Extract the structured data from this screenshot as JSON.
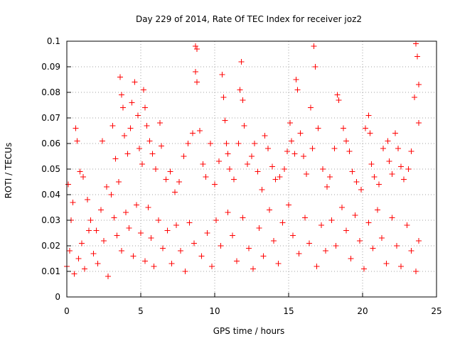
{
  "chart_data": {
    "type": "scatter",
    "title": "Day 229 of 2014, Rate Of TEC Index for receiver joz2",
    "xlabel": "GPS time / hours",
    "ylabel": "ROTI / TECUs",
    "xlim": [
      0,
      25
    ],
    "ylim": [
      0,
      0.1
    ],
    "xticks": [
      0,
      5,
      10,
      15,
      20,
      25
    ],
    "xtick_labels": [
      "0",
      "5",
      "10",
      "15",
      "20",
      "25"
    ],
    "yticks": [
      0,
      0.01,
      0.02,
      0.03,
      0.04,
      0.05,
      0.06,
      0.07,
      0.08,
      0.09,
      0.1
    ],
    "ytick_labels": [
      "0",
      "0.01",
      "0.02",
      "0.03",
      "0.04",
      "0.05",
      "0.06",
      "0.07",
      "0.08",
      "0.09",
      "0.1"
    ],
    "grid": true,
    "marker": "+",
    "series_color": "#ff0000",
    "series": [
      {
        "name": "joz2",
        "points": [
          [
            0.1,
            0.044
          ],
          [
            0.3,
            0.03
          ],
          [
            0.4,
            0.037
          ],
          [
            0.6,
            0.066
          ],
          [
            0.7,
            0.061
          ],
          [
            0.9,
            0.049
          ],
          [
            1.1,
            0.047
          ],
          [
            1.4,
            0.038
          ],
          [
            1.6,
            0.03
          ],
          [
            2.0,
            0.026
          ],
          [
            2.3,
            0.034
          ],
          [
            2.4,
            0.061
          ],
          [
            2.7,
            0.043
          ],
          [
            3.0,
            0.04
          ],
          [
            3.1,
            0.067
          ],
          [
            3.3,
            0.054
          ],
          [
            3.5,
            0.045
          ],
          [
            3.6,
            0.086
          ],
          [
            3.7,
            0.079
          ],
          [
            3.8,
            0.074
          ],
          [
            3.9,
            0.063
          ],
          [
            4.1,
            0.056
          ],
          [
            4.3,
            0.066
          ],
          [
            4.4,
            0.076
          ],
          [
            4.6,
            0.084
          ],
          [
            4.8,
            0.071
          ],
          [
            4.9,
            0.058
          ],
          [
            5.1,
            0.052
          ],
          [
            5.2,
            0.081
          ],
          [
            5.3,
            0.074
          ],
          [
            5.4,
            0.067
          ],
          [
            5.6,
            0.061
          ],
          [
            5.8,
            0.056
          ],
          [
            6.0,
            0.05
          ],
          [
            6.3,
            0.068
          ],
          [
            6.4,
            0.059
          ],
          [
            6.7,
            0.046
          ],
          [
            7.0,
            0.049
          ],
          [
            7.3,
            0.041
          ],
          [
            7.6,
            0.045
          ],
          [
            7.9,
            0.055
          ],
          [
            8.2,
            0.06
          ],
          [
            8.5,
            0.064
          ],
          [
            8.7,
            0.098
          ],
          [
            8.8,
            0.097
          ],
          [
            8.7,
            0.088
          ],
          [
            8.8,
            0.084
          ],
          [
            9.0,
            0.065
          ],
          [
            9.2,
            0.052
          ],
          [
            9.4,
            0.047
          ],
          [
            9.7,
            0.06
          ],
          [
            10.0,
            0.044
          ],
          [
            10.3,
            0.053
          ],
          [
            10.5,
            0.087
          ],
          [
            10.6,
            0.078
          ],
          [
            10.7,
            0.069
          ],
          [
            10.8,
            0.06
          ],
          [
            10.9,
            0.056
          ],
          [
            11.0,
            0.05
          ],
          [
            11.3,
            0.046
          ],
          [
            11.6,
            0.06
          ],
          [
            11.7,
            0.081
          ],
          [
            11.8,
            0.092
          ],
          [
            11.9,
            0.077
          ],
          [
            12.0,
            0.067
          ],
          [
            12.2,
            0.052
          ],
          [
            12.5,
            0.055
          ],
          [
            12.7,
            0.06
          ],
          [
            12.9,
            0.049
          ],
          [
            13.2,
            0.042
          ],
          [
            13.4,
            0.063
          ],
          [
            13.6,
            0.058
          ],
          [
            13.9,
            0.051
          ],
          [
            14.1,
            0.046
          ],
          [
            14.4,
            0.047
          ],
          [
            14.7,
            0.05
          ],
          [
            14.9,
            0.057
          ],
          [
            15.1,
            0.068
          ],
          [
            15.2,
            0.061
          ],
          [
            15.4,
            0.056
          ],
          [
            15.5,
            0.085
          ],
          [
            15.6,
            0.081
          ],
          [
            15.8,
            0.064
          ],
          [
            16.0,
            0.055
          ],
          [
            16.2,
            0.048
          ],
          [
            16.5,
            0.074
          ],
          [
            16.6,
            0.058
          ],
          [
            16.7,
            0.098
          ],
          [
            16.8,
            0.09
          ],
          [
            17.0,
            0.066
          ],
          [
            17.3,
            0.05
          ],
          [
            17.6,
            0.043
          ],
          [
            17.8,
            0.047
          ],
          [
            18.1,
            0.058
          ],
          [
            18.3,
            0.079
          ],
          [
            18.4,
            0.077
          ],
          [
            18.7,
            0.066
          ],
          [
            18.9,
            0.061
          ],
          [
            19.1,
            0.057
          ],
          [
            19.3,
            0.049
          ],
          [
            19.6,
            0.045
          ],
          [
            19.9,
            0.042
          ],
          [
            20.2,
            0.066
          ],
          [
            20.4,
            0.071
          ],
          [
            20.5,
            0.064
          ],
          [
            20.6,
            0.052
          ],
          [
            20.8,
            0.047
          ],
          [
            21.1,
            0.044
          ],
          [
            21.4,
            0.058
          ],
          [
            21.7,
            0.061
          ],
          [
            21.8,
            0.053
          ],
          [
            22.0,
            0.048
          ],
          [
            22.2,
            0.064
          ],
          [
            22.4,
            0.058
          ],
          [
            22.6,
            0.051
          ],
          [
            22.8,
            0.046
          ],
          [
            23.1,
            0.05
          ],
          [
            23.3,
            0.057
          ],
          [
            23.5,
            0.078
          ],
          [
            23.6,
            0.099
          ],
          [
            23.7,
            0.094
          ],
          [
            23.8,
            0.083
          ],
          [
            23.8,
            0.068
          ],
          [
            0.0,
            0.012
          ],
          [
            0.2,
            0.018
          ],
          [
            0.5,
            0.009
          ],
          [
            0.8,
            0.015
          ],
          [
            1.0,
            0.021
          ],
          [
            1.2,
            0.011
          ],
          [
            1.5,
            0.026
          ],
          [
            1.8,
            0.017
          ],
          [
            2.1,
            0.013
          ],
          [
            2.5,
            0.022
          ],
          [
            2.8,
            0.008
          ],
          [
            3.2,
            0.031
          ],
          [
            3.4,
            0.024
          ],
          [
            3.7,
            0.018
          ],
          [
            4.0,
            0.033
          ],
          [
            4.2,
            0.027
          ],
          [
            4.5,
            0.016
          ],
          [
            4.7,
            0.036
          ],
          [
            5.0,
            0.025
          ],
          [
            5.3,
            0.014
          ],
          [
            5.5,
            0.035
          ],
          [
            5.7,
            0.023
          ],
          [
            5.9,
            0.012
          ],
          [
            6.2,
            0.03
          ],
          [
            6.5,
            0.019
          ],
          [
            6.8,
            0.026
          ],
          [
            7.1,
            0.013
          ],
          [
            7.4,
            0.028
          ],
          [
            7.7,
            0.018
          ],
          [
            8.0,
            0.01
          ],
          [
            8.3,
            0.029
          ],
          [
            8.6,
            0.021
          ],
          [
            9.1,
            0.016
          ],
          [
            9.5,
            0.025
          ],
          [
            9.8,
            0.012
          ],
          [
            10.1,
            0.03
          ],
          [
            10.4,
            0.02
          ],
          [
            10.9,
            0.033
          ],
          [
            11.2,
            0.024
          ],
          [
            11.5,
            0.014
          ],
          [
            11.9,
            0.031
          ],
          [
            12.3,
            0.019
          ],
          [
            12.6,
            0.011
          ],
          [
            13.0,
            0.027
          ],
          [
            13.3,
            0.016
          ],
          [
            13.7,
            0.034
          ],
          [
            14.0,
            0.022
          ],
          [
            14.3,
            0.013
          ],
          [
            14.6,
            0.029
          ],
          [
            15.0,
            0.036
          ],
          [
            15.3,
            0.024
          ],
          [
            15.7,
            0.017
          ],
          [
            16.1,
            0.031
          ],
          [
            16.4,
            0.021
          ],
          [
            16.9,
            0.012
          ],
          [
            17.2,
            0.028
          ],
          [
            17.5,
            0.018
          ],
          [
            17.9,
            0.03
          ],
          [
            18.2,
            0.02
          ],
          [
            18.6,
            0.035
          ],
          [
            18.9,
            0.026
          ],
          [
            19.2,
            0.015
          ],
          [
            19.5,
            0.032
          ],
          [
            19.8,
            0.022
          ],
          [
            20.1,
            0.011
          ],
          [
            20.4,
            0.029
          ],
          [
            20.7,
            0.019
          ],
          [
            21.0,
            0.034
          ],
          [
            21.3,
            0.023
          ],
          [
            21.6,
            0.013
          ],
          [
            22.0,
            0.031
          ],
          [
            22.3,
            0.02
          ],
          [
            22.6,
            0.012
          ],
          [
            23.0,
            0.028
          ],
          [
            23.3,
            0.018
          ],
          [
            23.6,
            0.01
          ],
          [
            23.8,
            0.022
          ]
        ]
      }
    ]
  }
}
